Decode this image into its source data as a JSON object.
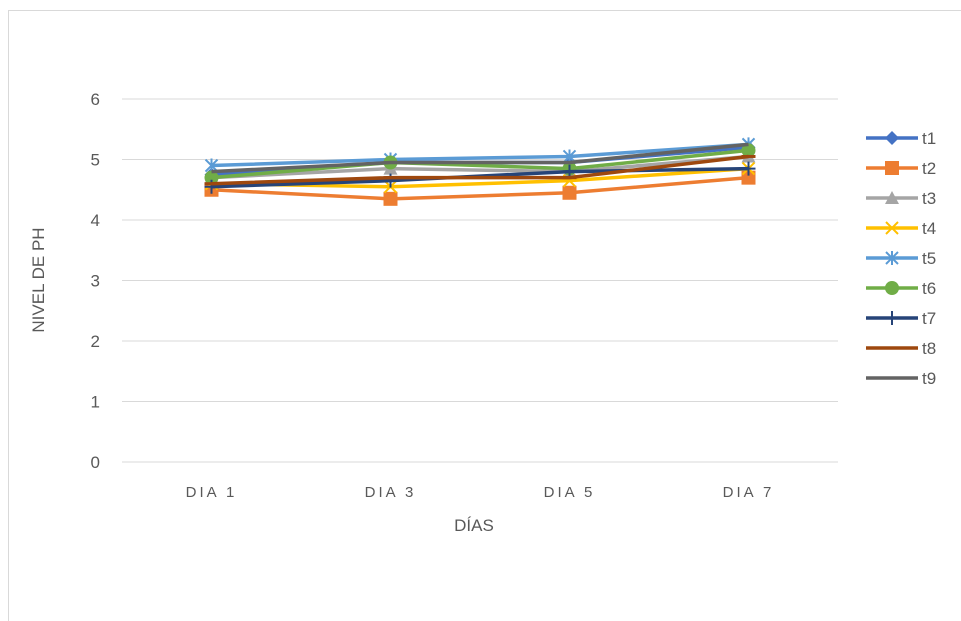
{
  "chart_data": {
    "type": "line",
    "title": "",
    "xlabel": "DÍAS",
    "ylabel": "NIVEL DE PH",
    "categories": [
      "DIA 1",
      "DIA 3",
      "DIA 5",
      "DIA 7"
    ],
    "ylim": [
      0,
      6
    ],
    "yticks": [
      "0",
      "1",
      "2",
      "3",
      "4",
      "5",
      "6"
    ],
    "grid": true,
    "legend_position": "right",
    "series": [
      {
        "name": "t1",
        "color": "#4472C4",
        "marker": "diamond",
        "values": [
          4.75,
          4.95,
          4.95,
          5.2
        ]
      },
      {
        "name": "t2",
        "color": "#ED7D31",
        "marker": "square",
        "values": [
          4.5,
          4.35,
          4.45,
          4.7
        ]
      },
      {
        "name": "t3",
        "color": "#A5A5A5",
        "marker": "triangle",
        "values": [
          4.7,
          4.85,
          4.8,
          5.05
        ]
      },
      {
        "name": "t4",
        "color": "#FFC000",
        "marker": "x",
        "values": [
          4.6,
          4.55,
          4.65,
          4.85
        ]
      },
      {
        "name": "t5",
        "color": "#5B9BD5",
        "marker": "star",
        "values": [
          4.9,
          5.0,
          5.05,
          5.25
        ]
      },
      {
        "name": "t6",
        "color": "#70AD47",
        "marker": "circle",
        "values": [
          4.7,
          4.95,
          4.85,
          5.15
        ]
      },
      {
        "name": "t7",
        "color": "#264478",
        "marker": "plus",
        "values": [
          4.55,
          4.65,
          4.8,
          4.85
        ]
      },
      {
        "name": "t8",
        "color": "#9E480E",
        "marker": "dash",
        "values": [
          4.6,
          4.7,
          4.7,
          5.05
        ]
      },
      {
        "name": "t9",
        "color": "#636363",
        "marker": "none",
        "values": [
          4.8,
          4.95,
          4.95,
          5.25
        ]
      }
    ]
  }
}
